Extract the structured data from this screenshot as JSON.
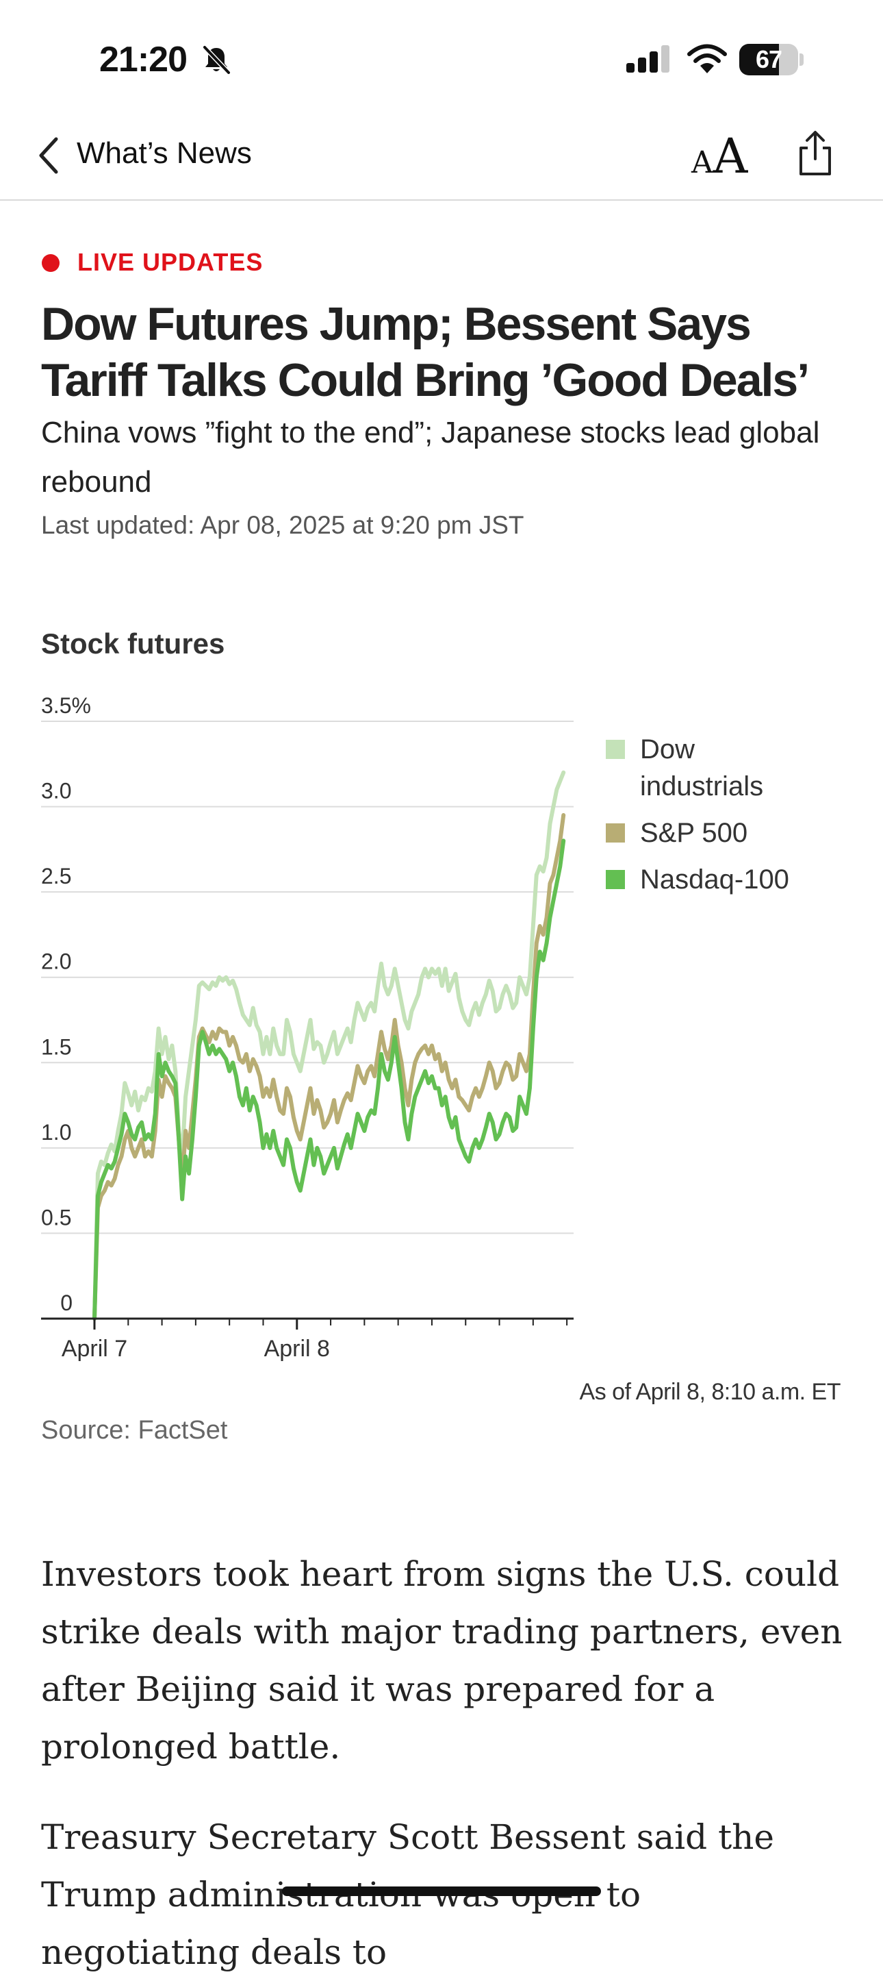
{
  "status_bar": {
    "time": "21:20",
    "battery": "67",
    "battery_level": 0.67,
    "icons": [
      "bell-slash-icon",
      "cellular-signal-icon",
      "wifi-icon",
      "battery-icon"
    ]
  },
  "nav": {
    "back_icon": "chevron-left-icon",
    "title": "What’s News",
    "text_size_small": "A",
    "text_size_large": "A",
    "share_icon": "share-icon"
  },
  "article": {
    "live_label": "LIVE UPDATES",
    "live_color": "#e0121a",
    "headline": "Dow Futures Jump; Bessent Says Tariff Talks Could Bring ’Good Deals’",
    "dek": "China vows ”fight to the end”; Japanese stocks lead global rebound",
    "updated": "Last updated: Apr 08, 2025 at 9:20 pm JST",
    "body": [
      "Investors took heart from signs the U.S. could strike deals with major trading partners, even after Beijing said it was prepared for a prolonged battle.",
      "Treasury Secretary Scott Bessent said the Trump administration was open to negotiating deals to"
    ]
  },
  "chart_data": {
    "type": "line",
    "title": "Stock futures",
    "y_tick_labels": [
      "0",
      "0.5",
      "1.0",
      "1.5",
      "2.0",
      "2.5",
      "3.0",
      "3.5%"
    ],
    "ylim": [
      0,
      3.5
    ],
    "x_tick_labels": [
      "April 7",
      "April 8"
    ],
    "xlim": [
      0,
      142
    ],
    "x_label_positions": [
      0,
      60
    ],
    "x_minor_ticks": [
      10,
      20,
      30,
      40,
      50,
      70,
      80,
      90,
      100,
      110,
      120,
      130,
      140
    ],
    "grid": true,
    "legend": "right",
    "note": "As of April 8, 8:10 a.m. ET",
    "source": "Source: FactSet",
    "series": [
      {
        "name": "Dow industrials",
        "color": "#c4e2b8",
        "values": [
          0.0,
          0.85,
          0.92,
          0.9,
          0.97,
          1.02,
          0.98,
          1.1,
          1.2,
          1.38,
          1.32,
          1.25,
          1.33,
          1.22,
          1.3,
          1.28,
          1.35,
          1.33,
          1.45,
          1.7,
          1.55,
          1.65,
          1.52,
          1.6,
          1.45,
          1.1,
          0.95,
          1.3,
          1.45,
          1.6,
          1.75,
          1.95,
          1.97,
          1.95,
          1.93,
          1.97,
          1.95,
          2.0,
          1.98,
          2.0,
          1.96,
          1.98,
          1.93,
          1.85,
          1.78,
          1.75,
          1.72,
          1.82,
          1.72,
          1.68,
          1.55,
          1.65,
          1.55,
          1.7,
          1.6,
          1.55,
          1.55,
          1.75,
          1.68,
          1.55,
          1.5,
          1.45,
          1.55,
          1.65,
          1.75,
          1.58,
          1.62,
          1.6,
          1.5,
          1.55,
          1.62,
          1.68,
          1.55,
          1.6,
          1.65,
          1.7,
          1.62,
          1.75,
          1.85,
          1.8,
          1.75,
          1.82,
          1.85,
          1.8,
          1.95,
          2.08,
          1.95,
          1.9,
          1.95,
          2.05,
          1.95,
          1.85,
          1.75,
          1.7,
          1.8,
          1.85,
          1.9,
          2.0,
          2.05,
          2.0,
          2.05,
          2.02,
          2.05,
          1.95,
          2.05,
          1.92,
          1.97,
          2.02,
          1.88,
          1.8,
          1.75,
          1.72,
          1.8,
          1.85,
          1.78,
          1.85,
          1.9,
          1.98,
          1.92,
          1.8,
          1.82,
          1.9,
          1.95,
          1.9,
          1.82,
          1.85,
          2.0,
          1.95,
          1.9,
          2.0,
          2.3,
          2.6,
          2.65,
          2.62,
          2.7,
          2.9,
          3.0,
          3.1,
          3.15,
          3.2
        ]
      },
      {
        "name": "S&P 500",
        "color": "#b8ad74",
        "values": [
          0.0,
          0.65,
          0.72,
          0.75,
          0.8,
          0.78,
          0.82,
          0.9,
          0.95,
          1.05,
          1.1,
          1.0,
          0.95,
          1.0,
          1.05,
          0.95,
          0.98,
          0.95,
          1.1,
          1.4,
          1.3,
          1.42,
          1.38,
          1.35,
          1.3,
          1.05,
          0.8,
          1.1,
          1.0,
          1.2,
          1.4,
          1.65,
          1.7,
          1.66,
          1.62,
          1.68,
          1.64,
          1.7,
          1.68,
          1.68,
          1.6,
          1.65,
          1.6,
          1.52,
          1.5,
          1.55,
          1.45,
          1.52,
          1.48,
          1.42,
          1.3,
          1.35,
          1.3,
          1.4,
          1.3,
          1.22,
          1.2,
          1.35,
          1.3,
          1.18,
          1.1,
          1.05,
          1.15,
          1.25,
          1.35,
          1.2,
          1.28,
          1.22,
          1.12,
          1.15,
          1.2,
          1.28,
          1.15,
          1.22,
          1.28,
          1.32,
          1.28,
          1.38,
          1.48,
          1.42,
          1.38,
          1.45,
          1.48,
          1.42,
          1.55,
          1.68,
          1.58,
          1.52,
          1.6,
          1.75,
          1.6,
          1.5,
          1.35,
          1.25,
          1.4,
          1.5,
          1.55,
          1.58,
          1.6,
          1.55,
          1.6,
          1.52,
          1.55,
          1.45,
          1.5,
          1.4,
          1.35,
          1.4,
          1.3,
          1.28,
          1.25,
          1.22,
          1.3,
          1.35,
          1.3,
          1.35,
          1.42,
          1.5,
          1.45,
          1.35,
          1.38,
          1.45,
          1.5,
          1.48,
          1.4,
          1.42,
          1.55,
          1.5,
          1.45,
          1.55,
          1.9,
          2.2,
          2.3,
          2.25,
          2.35,
          2.55,
          2.6,
          2.7,
          2.8,
          2.95
        ]
      },
      {
        "name": "Nasdaq-100",
        "color": "#63bf52",
        "values": [
          0.0,
          0.72,
          0.8,
          0.85,
          0.9,
          0.88,
          0.92,
          1.0,
          1.08,
          1.2,
          1.15,
          1.08,
          1.05,
          1.12,
          1.15,
          1.05,
          1.08,
          1.05,
          1.2,
          1.55,
          1.42,
          1.5,
          1.45,
          1.42,
          1.38,
          1.05,
          0.7,
          0.95,
          0.85,
          1.05,
          1.3,
          1.6,
          1.68,
          1.62,
          1.55,
          1.6,
          1.55,
          1.58,
          1.55,
          1.52,
          1.45,
          1.5,
          1.42,
          1.3,
          1.25,
          1.35,
          1.22,
          1.3,
          1.25,
          1.15,
          1.0,
          1.08,
          1.0,
          1.1,
          1.0,
          0.95,
          0.9,
          1.05,
          1.0,
          0.88,
          0.8,
          0.75,
          0.85,
          0.95,
          1.05,
          0.9,
          1.0,
          0.95,
          0.85,
          0.9,
          0.95,
          1.0,
          0.88,
          0.95,
          1.02,
          1.08,
          1.0,
          1.1,
          1.2,
          1.15,
          1.1,
          1.18,
          1.22,
          1.2,
          1.35,
          1.55,
          1.45,
          1.4,
          1.5,
          1.65,
          1.5,
          1.35,
          1.15,
          1.05,
          1.2,
          1.3,
          1.35,
          1.4,
          1.45,
          1.38,
          1.42,
          1.35,
          1.35,
          1.25,
          1.3,
          1.18,
          1.12,
          1.18,
          1.05,
          1.0,
          0.95,
          0.92,
          1.0,
          1.05,
          1.0,
          1.05,
          1.12,
          1.2,
          1.15,
          1.05,
          1.08,
          1.15,
          1.2,
          1.18,
          1.1,
          1.12,
          1.3,
          1.25,
          1.2,
          1.35,
          1.7,
          2.0,
          2.15,
          2.1,
          2.2,
          2.35,
          2.45,
          2.55,
          2.65,
          2.8
        ]
      }
    ]
  }
}
